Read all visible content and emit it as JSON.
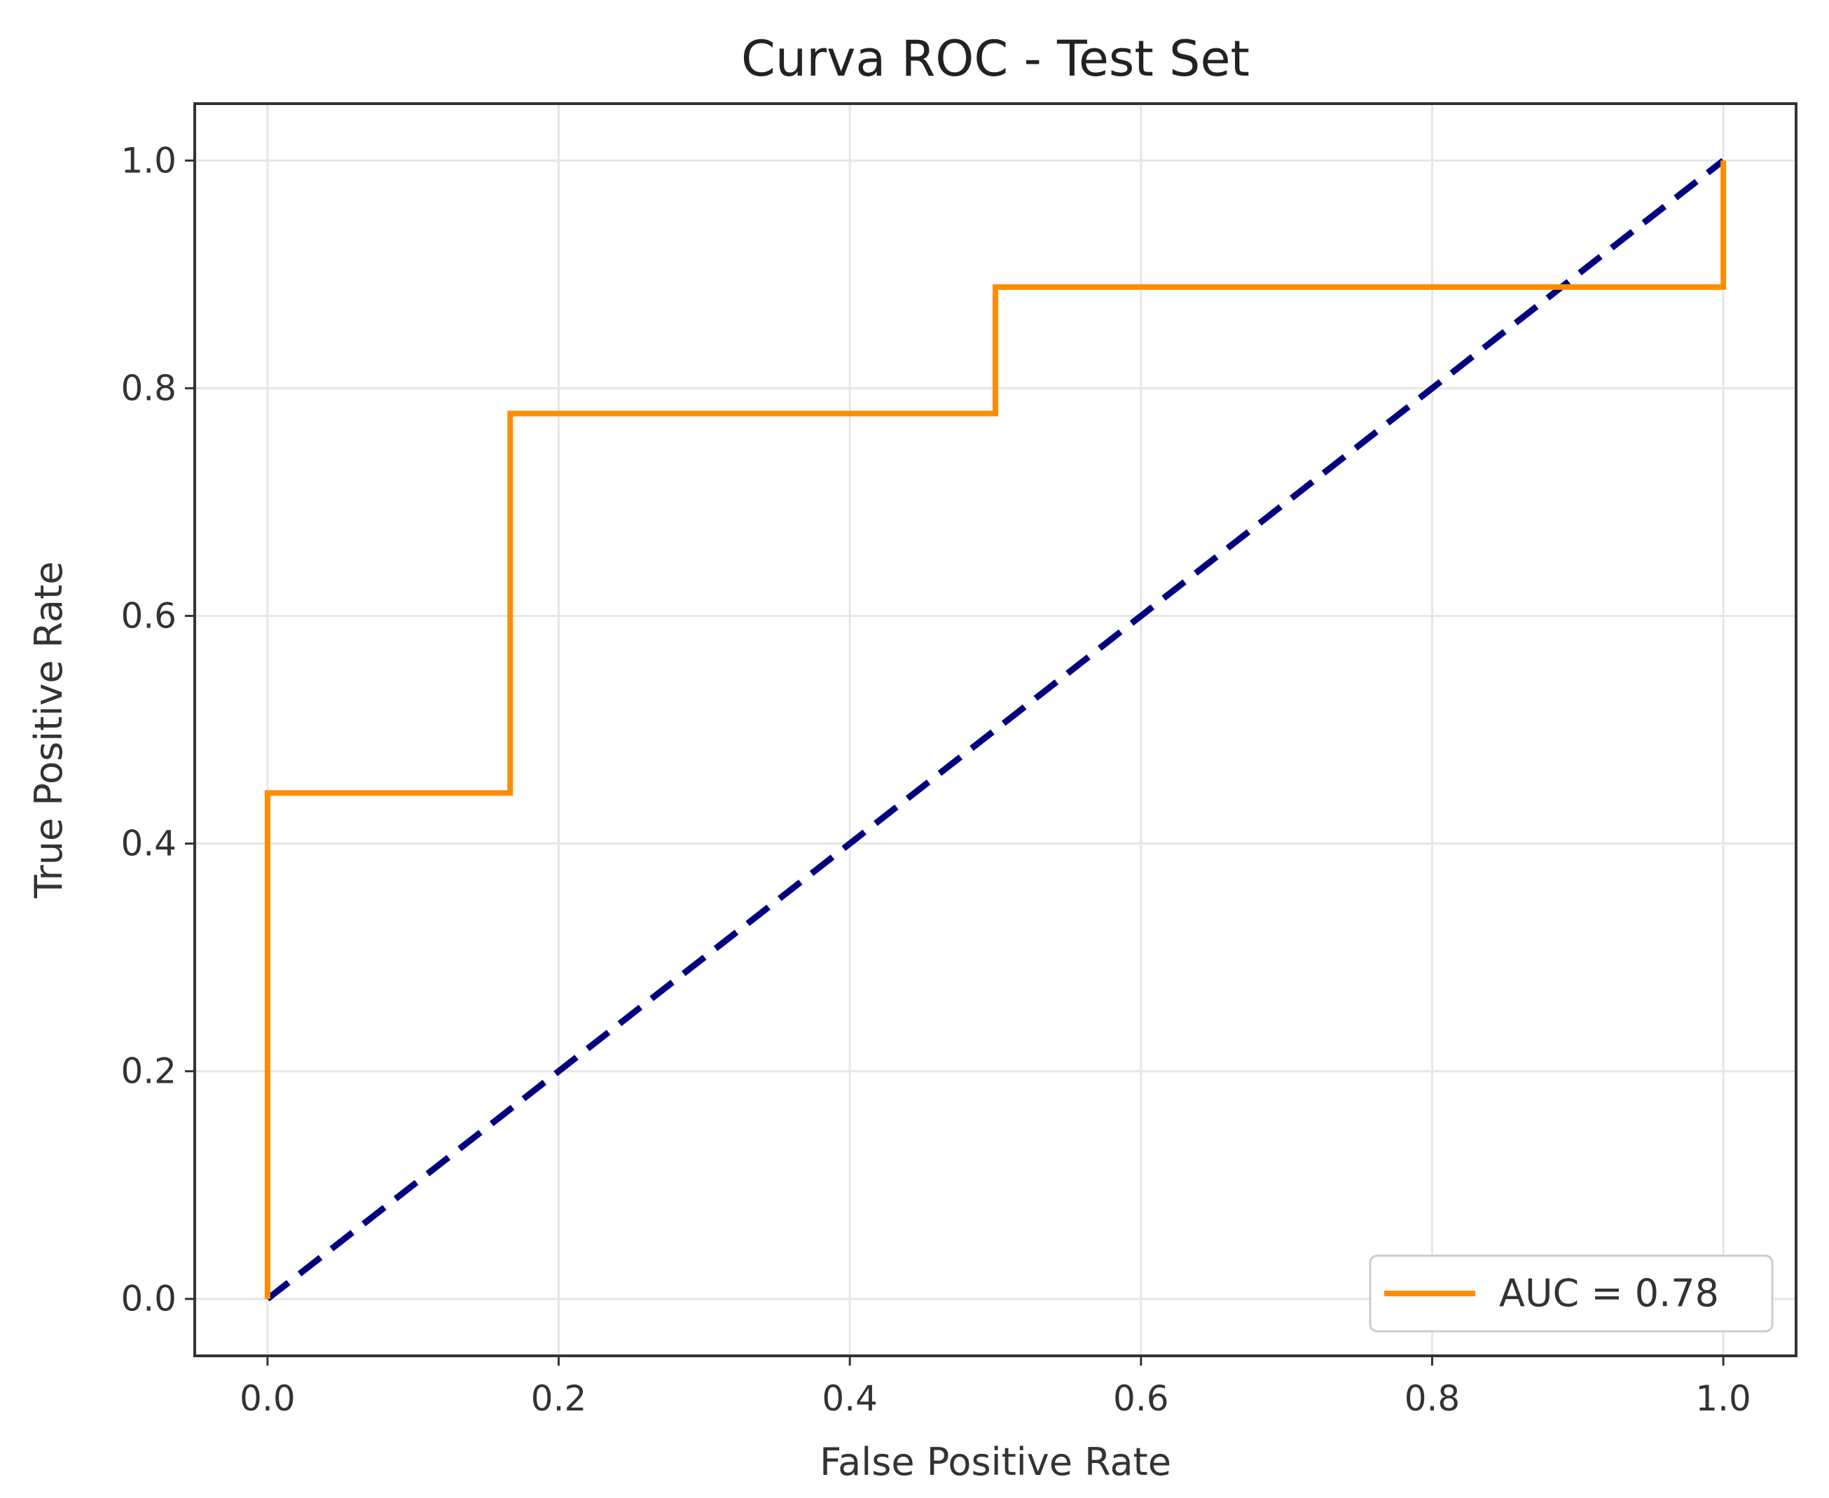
{
  "chart_data": {
    "type": "line",
    "title": "Curva ROC - Test Set",
    "xlabel": "False Positive Rate",
    "ylabel": "True Positive Rate",
    "xlim": [
      -0.05,
      1.05
    ],
    "ylim": [
      -0.05,
      1.05
    ],
    "xticks": [
      "0.0",
      "0.2",
      "0.4",
      "0.6",
      "0.8",
      "1.0"
    ],
    "yticks": [
      "0.0",
      "0.2",
      "0.4",
      "0.6",
      "0.8",
      "1.0"
    ],
    "grid": true,
    "legend_position": "lower right",
    "series": [
      {
        "name": "AUC = 0.78",
        "color": "#ff8c00",
        "style": "solid",
        "x": [
          0.0,
          0.0,
          0.1667,
          0.1667,
          0.5,
          0.5,
          1.0,
          1.0
        ],
        "y": [
          0.0,
          0.4444,
          0.4444,
          0.7778,
          0.7778,
          0.8889,
          0.8889,
          1.0
        ]
      },
      {
        "color": "#000080",
        "style": "dashed",
        "x": [
          0.0,
          1.0
        ],
        "y": [
          0.0,
          1.0
        ]
      }
    ]
  }
}
